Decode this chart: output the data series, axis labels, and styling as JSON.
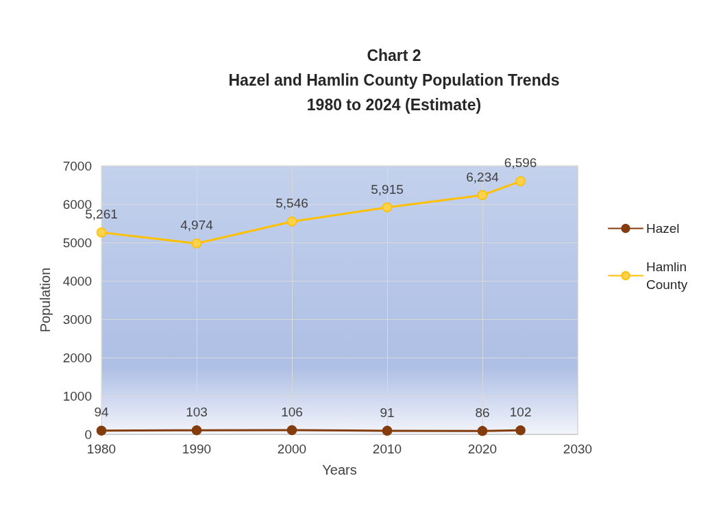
{
  "chart_data": {
    "type": "line",
    "title": "Chart 2\nHazel and Hamlin County Population Trends\n1980 to 2024 (Estimate)",
    "xlabel": "Years",
    "ylabel": "Population",
    "x": [
      1980,
      1990,
      2000,
      2010,
      2020,
      2024
    ],
    "series": [
      {
        "name": "Hazel",
        "color": "#843c0c",
        "values": [
          94,
          103,
          106,
          91,
          86,
          102
        ],
        "value_labels": [
          "94",
          "103",
          "106",
          "91",
          "86",
          "102"
        ]
      },
      {
        "name": "Hamlin County",
        "color": "#ffc000",
        "values": [
          5261,
          4974,
          5546,
          5915,
          6234,
          6596
        ],
        "value_labels": [
          "5,261",
          "4,974",
          "5,546",
          "5,915",
          "6,234",
          "6,596"
        ]
      }
    ],
    "xlim": [
      1980,
      2030
    ],
    "xticks": [
      1980,
      1990,
      2000,
      2010,
      2020,
      2030
    ],
    "ylim": [
      0,
      7000
    ],
    "yticks": [
      0,
      1000,
      2000,
      3000,
      4000,
      5000,
      6000,
      7000
    ],
    "grid": true,
    "legend": "right",
    "marker": "circle",
    "line_style": "solid"
  }
}
